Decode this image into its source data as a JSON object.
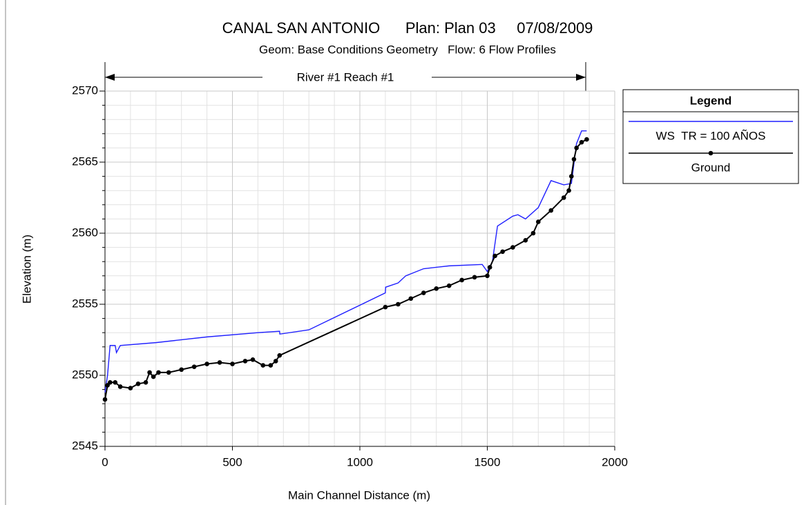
{
  "chart_data": {
    "type": "line",
    "title": "CANAL SAN ANTONIO      Plan: Plan 03     07/08/2009",
    "subtitle": "Geom: Base Conditions Geometry   Flow: 6 Flow Profiles",
    "annotation": "River #1 Reach #1",
    "x_label": "Main Channel Distance (m)",
    "y_label": "Elevation (m)",
    "legend_title": "Legend",
    "legend": "upper right outside",
    "grid": true,
    "xlim": [
      0,
      2000
    ],
    "xticks": [
      0,
      500,
      1000,
      1500,
      2000
    ],
    "ylim": [
      2545,
      2570
    ],
    "yticks": [
      2545,
      2550,
      2555,
      2560,
      2565,
      2570
    ],
    "series": [
      {
        "name": "WS  TR = 100 AÑOS",
        "color": "#1f1fff",
        "markers": false,
        "x": [
          0,
          10,
          20,
          40,
          45,
          60,
          200,
          400,
          600,
          685,
          686,
          800,
          1100,
          1101,
          1150,
          1180,
          1250,
          1350,
          1480,
          1500,
          1520,
          1540,
          1600,
          1620,
          1650,
          1700,
          1750,
          1800,
          1830,
          1850,
          1870,
          1890
        ],
        "values": [
          2548.8,
          2550.0,
          2552.1,
          2552.1,
          2551.6,
          2552.1,
          2552.3,
          2552.7,
          2553.0,
          2553.1,
          2552.9,
          2553.2,
          2555.8,
          2556.2,
          2556.5,
          2557.0,
          2557.5,
          2557.7,
          2557.8,
          2557.3,
          2558.0,
          2560.5,
          2561.2,
          2561.3,
          2561.0,
          2561.8,
          2563.7,
          2563.4,
          2563.5,
          2566.3,
          2567.2,
          2567.2
        ]
      },
      {
        "name": "Ground",
        "color": "#000000",
        "markers": true,
        "x": [
          0,
          10,
          20,
          40,
          60,
          100,
          130,
          160,
          175,
          190,
          210,
          250,
          300,
          350,
          400,
          450,
          500,
          550,
          580,
          620,
          650,
          670,
          685,
          1100,
          1150,
          1200,
          1250,
          1300,
          1350,
          1400,
          1450,
          1500,
          1510,
          1530,
          1560,
          1600,
          1650,
          1680,
          1700,
          1750,
          1800,
          1820,
          1830,
          1840,
          1850,
          1870,
          1890
        ],
        "values": [
          2548.3,
          2549.3,
          2549.5,
          2549.5,
          2549.2,
          2549.1,
          2549.4,
          2549.5,
          2550.2,
          2549.9,
          2550.2,
          2550.2,
          2550.4,
          2550.6,
          2550.8,
          2550.9,
          2550.8,
          2551.0,
          2551.1,
          2550.7,
          2550.7,
          2551.0,
          2551.4,
          2554.8,
          2555.0,
          2555.4,
          2555.8,
          2556.1,
          2556.3,
          2556.7,
          2556.9,
          2557.0,
          2557.6,
          2558.4,
          2558.7,
          2559.0,
          2559.5,
          2560.0,
          2560.8,
          2561.6,
          2562.5,
          2563.0,
          2564.0,
          2565.2,
          2566.0,
          2566.4,
          2566.6
        ]
      }
    ]
  }
}
